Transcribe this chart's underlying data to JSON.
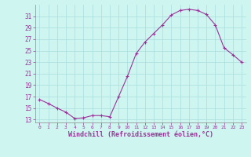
{
  "x": [
    0,
    1,
    2,
    3,
    4,
    5,
    6,
    7,
    8,
    9,
    10,
    11,
    12,
    13,
    14,
    15,
    16,
    17,
    18,
    19,
    20,
    21,
    22,
    23
  ],
  "y": [
    16.5,
    15.8,
    15.0,
    14.3,
    13.2,
    13.3,
    13.7,
    13.7,
    13.5,
    17.0,
    20.5,
    24.5,
    26.5,
    28.0,
    29.5,
    31.2,
    32.0,
    32.2,
    32.0,
    31.3,
    29.5,
    25.5,
    24.3,
    23.0
  ],
  "line_color": "#993399",
  "bg_color": "#cef5f0",
  "grid_color": "#aadddd",
  "xlabel": "Windchill (Refroidissement éolien,°C)",
  "xlabel_color": "#993399",
  "tick_color": "#993399",
  "ylim": [
    12.5,
    33.0
  ],
  "yticks": [
    13,
    15,
    17,
    19,
    21,
    23,
    25,
    27,
    29,
    31
  ],
  "xlim": [
    -0.5,
    23.5
  ],
  "xticks": [
    0,
    1,
    2,
    3,
    4,
    5,
    6,
    7,
    8,
    9,
    10,
    11,
    12,
    13,
    14,
    15,
    16,
    17,
    18,
    19,
    20,
    21,
    22,
    23
  ]
}
